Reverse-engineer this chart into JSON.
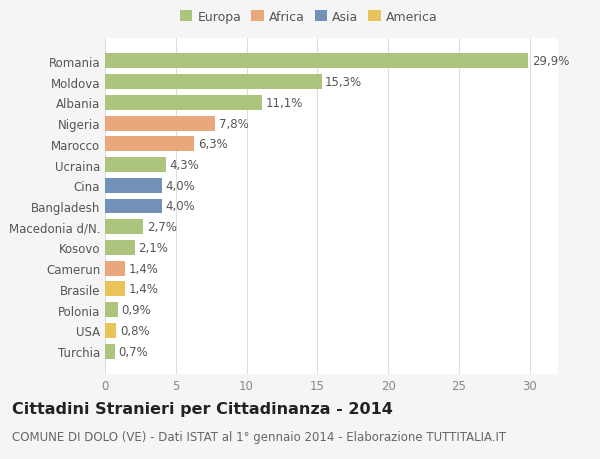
{
  "categories": [
    "Romania",
    "Moldova",
    "Albania",
    "Nigeria",
    "Marocco",
    "Ucraina",
    "Cina",
    "Bangladesh",
    "Macedonia d/N.",
    "Kosovo",
    "Camerun",
    "Brasile",
    "Polonia",
    "USA",
    "Turchia"
  ],
  "values": [
    29.9,
    15.3,
    11.1,
    7.8,
    6.3,
    4.3,
    4.0,
    4.0,
    2.7,
    2.1,
    1.4,
    1.4,
    0.9,
    0.8,
    0.7
  ],
  "labels": [
    "29,9%",
    "15,3%",
    "11,1%",
    "7,8%",
    "6,3%",
    "4,3%",
    "4,0%",
    "4,0%",
    "2,7%",
    "2,1%",
    "1,4%",
    "1,4%",
    "0,9%",
    "0,8%",
    "0,7%"
  ],
  "colors": [
    "#adc47d",
    "#adc47d",
    "#adc47d",
    "#e8a87c",
    "#e8a87c",
    "#adc47d",
    "#7191b8",
    "#7191b8",
    "#adc47d",
    "#adc47d",
    "#e8a87c",
    "#e8c45a",
    "#adc47d",
    "#e8c45a",
    "#adc47d"
  ],
  "legend_labels": [
    "Europa",
    "Africa",
    "Asia",
    "America"
  ],
  "legend_colors": [
    "#adc47d",
    "#e8a87c",
    "#7191b8",
    "#e8c45a"
  ],
  "title": "Cittadini Stranieri per Cittadinanza - 2014",
  "subtitle": "COMUNE DI DOLO (VE) - Dati ISTAT al 1° gennaio 2014 - Elaborazione TUTTITALIA.IT",
  "xlim": [
    0,
    32
  ],
  "xticks": [
    0,
    5,
    10,
    15,
    20,
    25,
    30
  ],
  "background_color": "#f5f5f5",
  "plot_background": "#ffffff",
  "grid_color": "#dddddd",
  "bar_height": 0.72,
  "title_fontsize": 11.5,
  "subtitle_fontsize": 8.5,
  "tick_fontsize": 8.5,
  "label_fontsize": 8.5
}
